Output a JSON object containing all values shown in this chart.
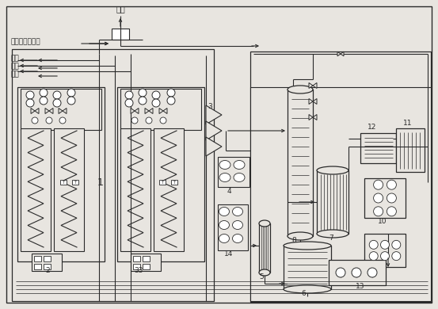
{
  "background_color": "#e8e5e0",
  "line_color": "#2a2a2a",
  "fig_width": 5.53,
  "fig_height": 3.9,
  "labels": {
    "fangkong": "放空",
    "wuran": "污氮去水冷却塔",
    "yangqi": "氧气",
    "danqi": "氮气",
    "kongqi": "空气"
  }
}
